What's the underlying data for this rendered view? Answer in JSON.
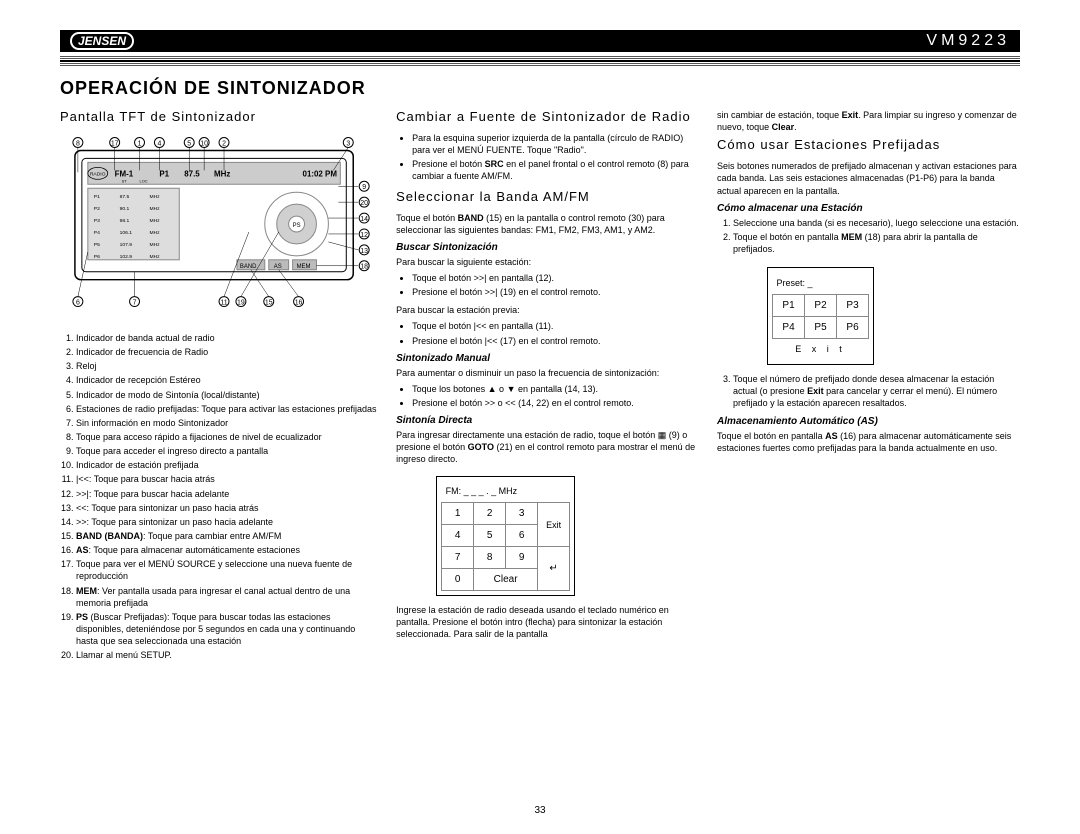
{
  "header": {
    "logo": "JENSEN",
    "model": "VM9223"
  },
  "title": "OPERACIÓN DE SINTONIZADOR",
  "pageNumber": "33",
  "left": {
    "h2": "Pantalla TFT de Sintonizador",
    "device": {
      "clock": "01:02 PM",
      "band": "FM-1",
      "preset": "P1",
      "freq": "87.5",
      "unit": "MHz",
      "radio_label": "RADIO",
      "st": "ST",
      "loc": "LOC",
      "presets": [
        {
          "p": "P1",
          "f": "87.5",
          "u": "MHz"
        },
        {
          "p": "P2",
          "f": "90.1",
          "u": "MHz"
        },
        {
          "p": "P3",
          "f": "98.1",
          "u": "MHz"
        },
        {
          "p": "P4",
          "f": "106.1",
          "u": "MHz"
        },
        {
          "p": "P5",
          "f": "107.9",
          "u": "MHz"
        },
        {
          "p": "P6",
          "f": "102.9",
          "u": "MHz"
        }
      ],
      "btn_band": "BAND",
      "btn_as": "AS",
      "btn_mem": "MEM",
      "btn_ps": "PS",
      "callouts": [
        "1",
        "2",
        "3",
        "4",
        "5",
        "6",
        "7",
        "8",
        "9",
        "10",
        "11",
        "12",
        "13",
        "14",
        "15",
        "16",
        "17",
        "18",
        "19",
        "20"
      ]
    },
    "list": [
      "Indicador de banda actual de radio",
      "Indicador de frecuencia de Radio",
      "Reloj",
      "Indicador de recepción Estéreo",
      "Indicador de modo de Sintonía (local/distante)",
      "Estaciones de radio prefijadas: Toque para activar las estaciones prefijadas",
      "Sin información en modo Sintonizador",
      "Toque para acceso rápido a fijaciones de nivel de ecualizador",
      "Toque para acceder el ingreso directo a pantalla",
      "Indicador de estación prefijada",
      "|<<: Toque para buscar hacia atrás",
      ">>|: Toque para buscar hacia adelante",
      "<<: Toque para sintonizar un paso hacia atrás",
      ">>: Toque para sintonizar un paso hacia adelante",
      "BAND (BANDA): Toque para cambiar entre AM/FM",
      "AS: Toque para almacenar automáticamente estaciones",
      "Toque para ver el MENÚ SOURCE y seleccione una nueva fuente de reproducción",
      "MEM: Ver pantalla usada para ingresar el canal actual dentro de una memoria prefijada",
      "PS (Buscar Prefijadas): Toque para buscar todas las estaciones disponibles, deteniéndose por 5 segundos en cada una y continuando hasta que sea seleccionada una estación",
      "Llamar al menú SETUP."
    ],
    "boldInline": {
      "15": "BAND (BANDA)",
      "16": "AS",
      "18": "MEM",
      "19": "PS"
    }
  },
  "mid": {
    "h2a": "Cambiar a Fuente de Sintonizador de Radio",
    "bullets1": [
      "Para la esquina superior izquierda de la pantalla (círculo de RADIO) para ver el MENÚ FUENTE. Toque \"Radio\".",
      "Presione el botón SRC en el panel frontal o el control remoto (8) para cambiar a fuente AM/FM."
    ],
    "h2b": "Seleccionar la Banda AM/FM",
    "p1": "Toque el botón BAND (15) en la pantalla o control remoto (30) para seleccionar las siguientes bandas: FM1, FM2, FM3, AM1, y AM2.",
    "h3a": "Buscar Sintonización",
    "p2": "Para buscar la siguiente estación:",
    "bullets2": [
      "Toque el botón >>| en pantalla (12).",
      "Presione el botón >>| (19) en el control remoto."
    ],
    "p3": "Para buscar la estación previa:",
    "bullets3": [
      "Toque el botón |<< en pantalla (11).",
      "Presione el botón |<< (17) en el control remoto."
    ],
    "h3b": "Sintonizado Manual",
    "p4": "Para aumentar o disminuir un paso la frecuencia de sintonización:",
    "bullets4": [
      "Toque los botones ▲ o ▼ en pantalla (14, 13).",
      "Presione el botón >> o << (14, 22) en el control remoto."
    ],
    "h3c": "Sintonía Directa",
    "p5": "Para ingresar directamente una estación de radio, toque el botón ▦ (9) o presione el botón GOTO (21) en el control remoto para mostrar el menú de ingreso directo.",
    "keypad": {
      "header": "FM: _ _ _ . _ MHz",
      "rows": [
        [
          "1",
          "2",
          "3"
        ],
        [
          "4",
          "5",
          "6"
        ],
        [
          "7",
          "8",
          "9"
        ],
        [
          "0",
          "Clear",
          ""
        ]
      ],
      "exit": "Exit"
    },
    "p6": "Ingrese la estación de radio deseada usando el teclado numérico en pantalla. Presione el botón intro (flecha) para sintonizar la estación seleccionada. Para salir de la pantalla"
  },
  "right": {
    "p0": "sin cambiar de estación, toque Exit. Para limpiar su ingreso y comenzar de nuevo, toque Clear.",
    "h2": "Cómo usar Estaciones Prefijadas",
    "p1": "Seis botones numerados de prefijado almacenan y activan estaciones para cada banda. Las seis estaciones almacenadas (P1-P6) para la banda actual aparecen en la pantalla.",
    "h3a": "Cómo almacenar una Estación",
    "ol1": [
      "Seleccione una banda (si es necesario), luego seleccione una estación.",
      "Toque el botón en pantalla MEM (18) para abrir la pantalla de prefijados."
    ],
    "presetFig": {
      "header": "Preset: _",
      "rows": [
        [
          "P1",
          "P2",
          "P3"
        ],
        [
          "P4",
          "P5",
          "P6"
        ]
      ],
      "exit": "E x i t"
    },
    "ol2start": 3,
    "ol2": [
      "Toque el número de prefijado donde desea almacenar la estación actual (o presione Exit para cancelar y cerrar el menú). El número prefijado y la estación aparecen resaltados."
    ],
    "h3b": "Almacenamiento Automático (AS)",
    "p2": "Toque el botón en pantalla AS (16) para almacenar automáticamente seis estaciones fuertes como prefijadas para la banda actualmente en uso."
  }
}
